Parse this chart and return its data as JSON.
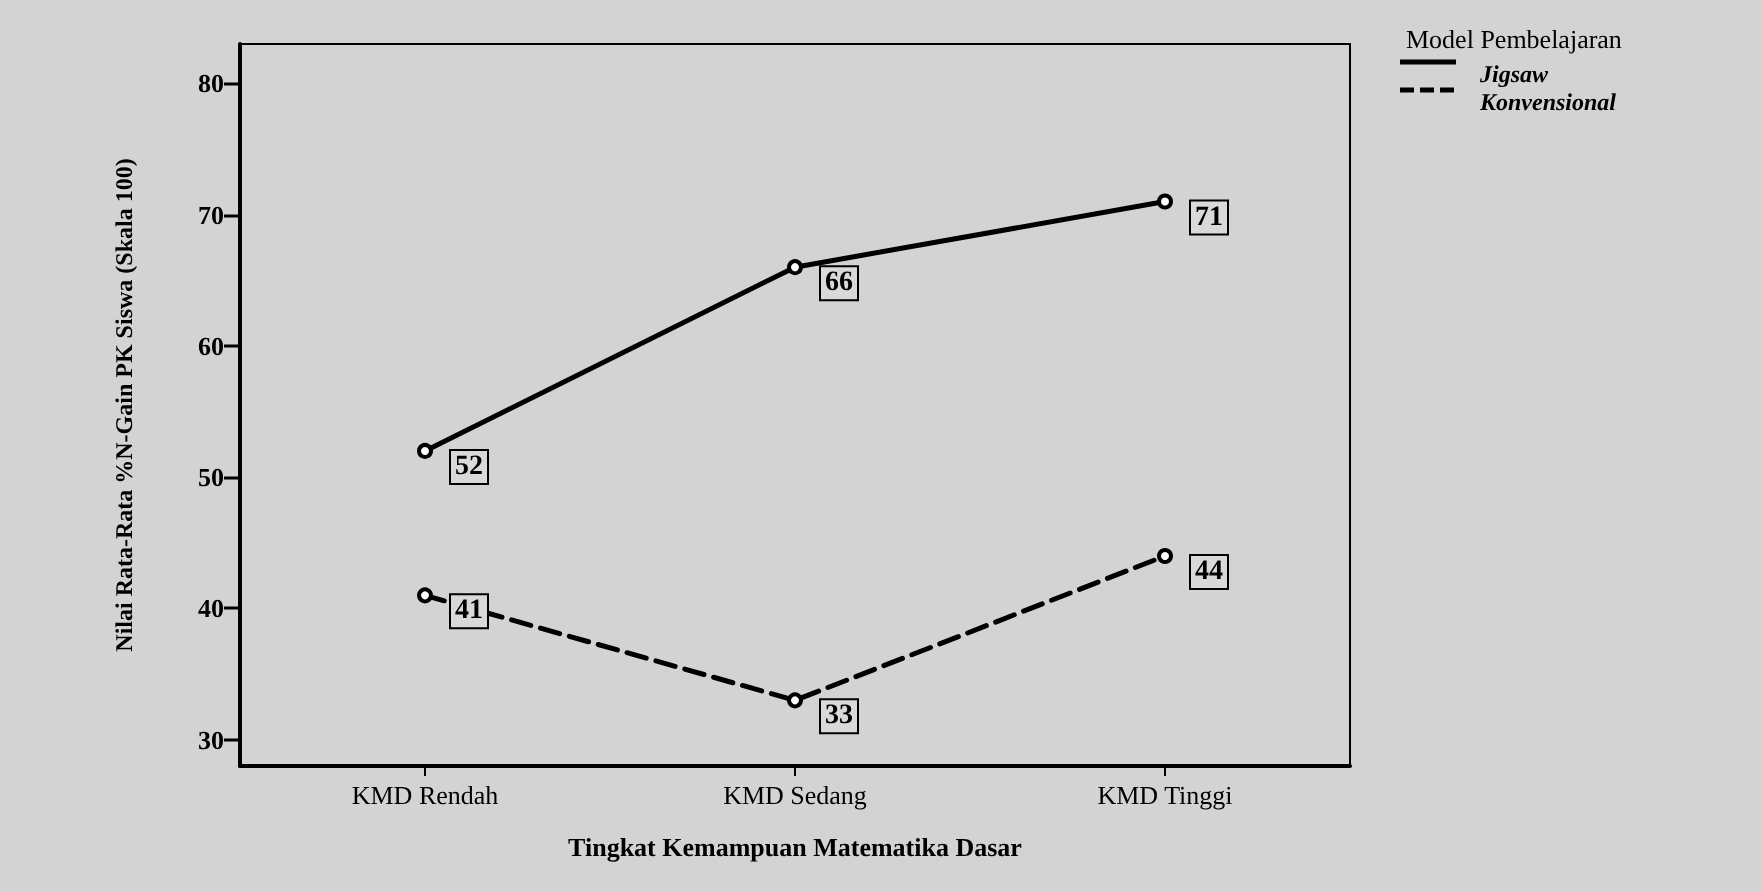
{
  "chart_data": {
    "type": "line",
    "xlabel": "Tingkat Kemampuan Matematika Dasar",
    "ylabel": "Nilai Rata-Rata %N-Gain PK Siswa (Skala 100)",
    "legend_title": "Model Pembelajaran",
    "categories": [
      "KMD Rendah",
      "KMD Sedang",
      "KMD Tinggi"
    ],
    "series": [
      {
        "name": "Jigsaw",
        "color": "#000000",
        "line_style": "solid",
        "values": [
          52,
          66,
          71
        ]
      },
      {
        "name": "Konvensional",
        "color": "#000000",
        "line_style": "dashed",
        "values": [
          41,
          33,
          44
        ]
      }
    ],
    "ylim": [
      28,
      83
    ],
    "yticks": [
      30,
      40,
      50,
      60,
      70,
      80
    ],
    "marker": "circle",
    "data_labels": true,
    "legend": "top right",
    "grid": false
  }
}
